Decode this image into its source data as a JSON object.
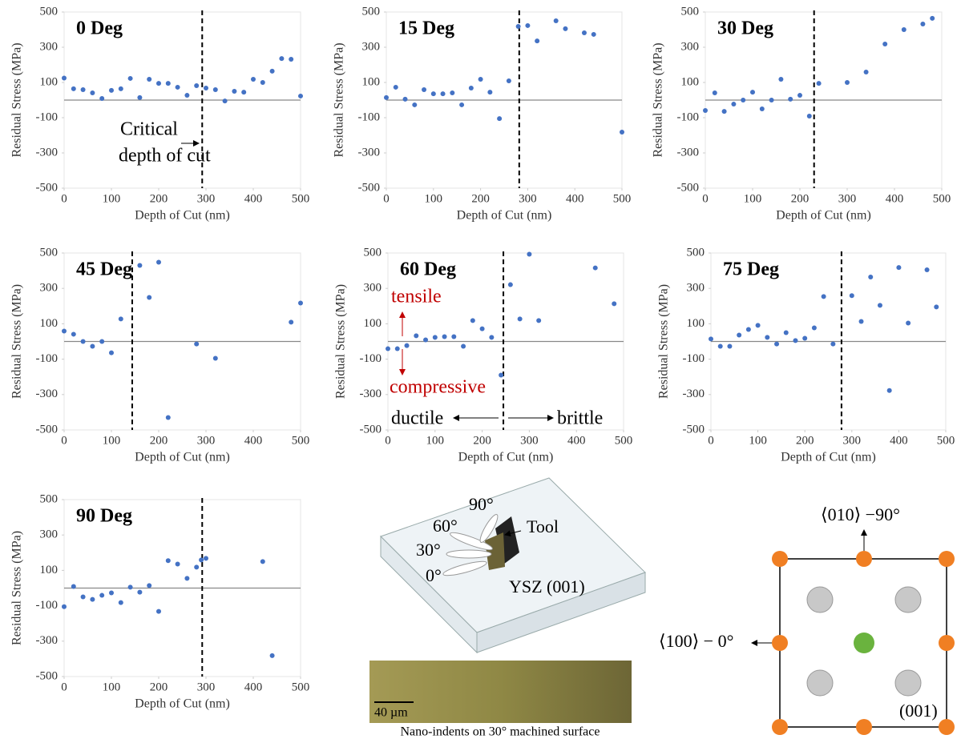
{
  "chart_data": [
    {
      "type": "scatter",
      "title": "0 Deg",
      "x_label": "Depth of Cut (nm)",
      "y_label": "Residual Stress (MPa)",
      "color": "#4472c4",
      "x": [
        0,
        20,
        40,
        60,
        80,
        100,
        120,
        140,
        160,
        180,
        200,
        220,
        240,
        260,
        280,
        300,
        320,
        340,
        360,
        380,
        400,
        420,
        440,
        460,
        480,
        500
      ],
      "values": [
        125,
        64,
        59,
        41,
        9,
        55,
        64,
        123,
        14,
        118,
        95,
        95,
        73,
        27,
        82,
        68,
        59,
        -5,
        50,
        45,
        118,
        100,
        164,
        236,
        232,
        23
      ],
      "xlim": [
        0,
        500
      ],
      "ylim": [
        -500,
        500
      ],
      "xticks": [
        0,
        100,
        200,
        300,
        400,
        500
      ],
      "yticks": [
        -500,
        -300,
        -100,
        100,
        300,
        500
      ],
      "critical_depth": 292,
      "annotations": [
        "Critical",
        "depth of cut"
      ]
    },
    {
      "type": "scatter",
      "title": "15 Deg",
      "x_label": "Depth of Cut (nm)",
      "y_label": "Residual Stress (MPa)",
      "color": "#4472c4",
      "x": [
        0,
        20,
        40,
        60,
        80,
        100,
        120,
        140,
        160,
        180,
        200,
        220,
        240,
        260,
        280,
        300,
        320,
        360,
        380,
        420,
        440,
        500
      ],
      "values": [
        14,
        73,
        5,
        -27,
        59,
        36,
        36,
        41,
        -27,
        68,
        118,
        45,
        -105,
        109,
        418,
        423,
        336,
        450,
        405,
        382,
        373,
        -182
      ],
      "xlim": [
        0,
        500
      ],
      "ylim": [
        -500,
        500
      ],
      "xticks": [
        0,
        100,
        200,
        300,
        400,
        500
      ],
      "yticks": [
        -500,
        -300,
        -100,
        100,
        300,
        500
      ],
      "critical_depth": 282
    },
    {
      "type": "scatter",
      "title": "30 Deg",
      "x_label": "Depth of Cut (nm)",
      "y_label": "Residual Stress (MPa)",
      "color": "#4472c4",
      "x": [
        0,
        20,
        40,
        60,
        80,
        100,
        120,
        140,
        160,
        180,
        200,
        220,
        240,
        300,
        340,
        380,
        420,
        460,
        480
      ],
      "values": [
        -59,
        41,
        -64,
        -23,
        0,
        45,
        -50,
        0,
        118,
        5,
        27,
        -91,
        95,
        100,
        159,
        318,
        400,
        432,
        464
      ],
      "xlim": [
        0,
        500
      ],
      "ylim": [
        -500,
        500
      ],
      "xticks": [
        0,
        100,
        200,
        300,
        400,
        500
      ],
      "yticks": [
        -500,
        -300,
        -100,
        100,
        300,
        500
      ],
      "critical_depth": 230
    },
    {
      "type": "scatter",
      "title": "45 Deg",
      "x_label": "Depth of Cut (nm)",
      "y_label": "Residual Stress (MPa)",
      "color": "#4472c4",
      "x": [
        0,
        20,
        40,
        60,
        80,
        100,
        120,
        160,
        180,
        200,
        220,
        280,
        320,
        480,
        500
      ],
      "values": [
        59,
        41,
        0,
        -27,
        0,
        -64,
        127,
        430,
        249,
        448,
        -430,
        -14,
        -95,
        109,
        217
      ],
      "xlim": [
        0,
        500
      ],
      "ylim": [
        -500,
        500
      ],
      "xticks": [
        0,
        100,
        200,
        300,
        400,
        500
      ],
      "yticks": [
        -500,
        -300,
        -100,
        100,
        300,
        500
      ],
      "critical_depth": 144
    },
    {
      "type": "scatter",
      "title": "60 Deg",
      "x_label": "Depth of Cut (nm)",
      "y_label": "Residual Stress (MPa)",
      "color": "#4472c4",
      "x": [
        0,
        20,
        40,
        60,
        80,
        100,
        120,
        140,
        160,
        180,
        200,
        220,
        240,
        260,
        280,
        300,
        320,
        440,
        480
      ],
      "values": [
        -41,
        -41,
        -23,
        32,
        9,
        23,
        27,
        27,
        -27,
        118,
        72,
        23,
        -190,
        321,
        127,
        493,
        118,
        416,
        213
      ],
      "xlim": [
        0,
        500
      ],
      "ylim": [
        -500,
        500
      ],
      "xticks": [
        0,
        100,
        200,
        300,
        400,
        500
      ],
      "yticks": [
        -500,
        -300,
        -100,
        100,
        300,
        500
      ],
      "critical_depth": 245,
      "annotations": [
        "tensile",
        "compressive",
        "ductile",
        "brittle"
      ]
    },
    {
      "type": "scatter",
      "title": "75 Deg",
      "x_label": "Depth of Cut (nm)",
      "y_label": "Residual Stress (MPa)",
      "color": "#4472c4",
      "x": [
        0,
        20,
        40,
        60,
        80,
        100,
        120,
        140,
        160,
        180,
        200,
        220,
        240,
        260,
        300,
        320,
        340,
        360,
        380,
        400,
        420,
        460,
        480
      ],
      "values": [
        14,
        -27,
        -27,
        36,
        68,
        91,
        23,
        -14,
        50,
        5,
        18,
        77,
        254,
        -14,
        259,
        113,
        364,
        204,
        -277,
        418,
        104,
        405,
        195
      ],
      "xlim": [
        0,
        500
      ],
      "ylim": [
        -500,
        500
      ],
      "xticks": [
        0,
        100,
        200,
        300,
        400,
        500
      ],
      "yticks": [
        -500,
        -300,
        -100,
        100,
        300,
        500
      ],
      "critical_depth": 278
    },
    {
      "type": "scatter",
      "title": "90 Deg",
      "x_label": "Depth of Cut (nm)",
      "y_label": "Residual Stress (MPa)",
      "color": "#4472c4",
      "x": [
        0,
        20,
        40,
        60,
        80,
        100,
        120,
        140,
        160,
        180,
        200,
        220,
        240,
        260,
        280,
        290,
        300,
        420,
        440
      ],
      "values": [
        -105,
        9,
        -50,
        -64,
        -41,
        -27,
        -82,
        5,
        -23,
        14,
        -132,
        155,
        136,
        55,
        118,
        159,
        168,
        150,
        -382
      ],
      "xlim": [
        0,
        500
      ],
      "ylim": [
        -500,
        500
      ],
      "xticks": [
        0,
        100,
        200,
        300,
        400,
        500
      ],
      "yticks": [
        -500,
        -300,
        -100,
        100,
        300,
        500
      ],
      "critical_depth": 292
    }
  ],
  "diagram": {
    "angle_90": "90°",
    "angle_60": "60°",
    "angle_30": "30°",
    "angle_0": "0°",
    "tool": "Tool",
    "sample": "YSZ (001)",
    "scale_bar": "40 µm",
    "caption": "Nano-indents on 30° machined surface",
    "dir_010": "⟨010⟩ −90°",
    "dir_100": "⟨100⟩ − 0°",
    "plane": "(001)"
  }
}
